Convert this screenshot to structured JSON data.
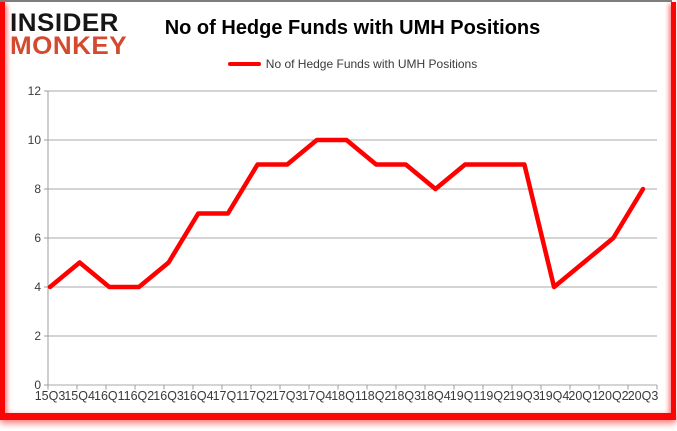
{
  "logo": {
    "line1": "INSIDER",
    "line2": "MONKEY"
  },
  "header": {
    "title": "No of Hedge Funds with UMH Positions"
  },
  "legend": {
    "label": "No of Hedge Funds with UMH Positions"
  },
  "colors": {
    "line": "#ff0000",
    "logo_red": "#d34a2e",
    "grid": "#a8a8a8",
    "axis": "#9c9c9c",
    "axis_text": "#3a3a3a",
    "frame": "#f90606",
    "title_text": "#000000"
  },
  "chart_data": {
    "type": "line",
    "title": "No of Hedge Funds with UMH Positions",
    "categories": [
      "15Q3",
      "15Q4",
      "16Q1",
      "16Q2",
      "16Q3",
      "16Q4",
      "17Q1",
      "17Q2",
      "17Q3",
      "17Q4",
      "18Q1",
      "18Q2",
      "18Q3",
      "18Q4",
      "19Q1",
      "19Q2",
      "19Q3",
      "19Q4",
      "20Q1",
      "20Q2",
      "20Q3"
    ],
    "series": [
      {
        "name": "No of Hedge Funds with UMH Positions",
        "color": "#ff0000",
        "values": [
          4,
          5,
          4,
          4,
          5,
          7,
          7,
          9,
          9,
          10,
          10,
          9,
          9,
          8,
          9,
          9,
          9,
          4,
          5,
          6,
          8
        ]
      }
    ],
    "xlabel": "",
    "ylabel": "",
    "ylim": [
      0,
      12
    ],
    "ytick_step": 2,
    "yticks": [
      0,
      2,
      4,
      6,
      8,
      10,
      12
    ],
    "grid": true,
    "legend_position": "top-center"
  }
}
